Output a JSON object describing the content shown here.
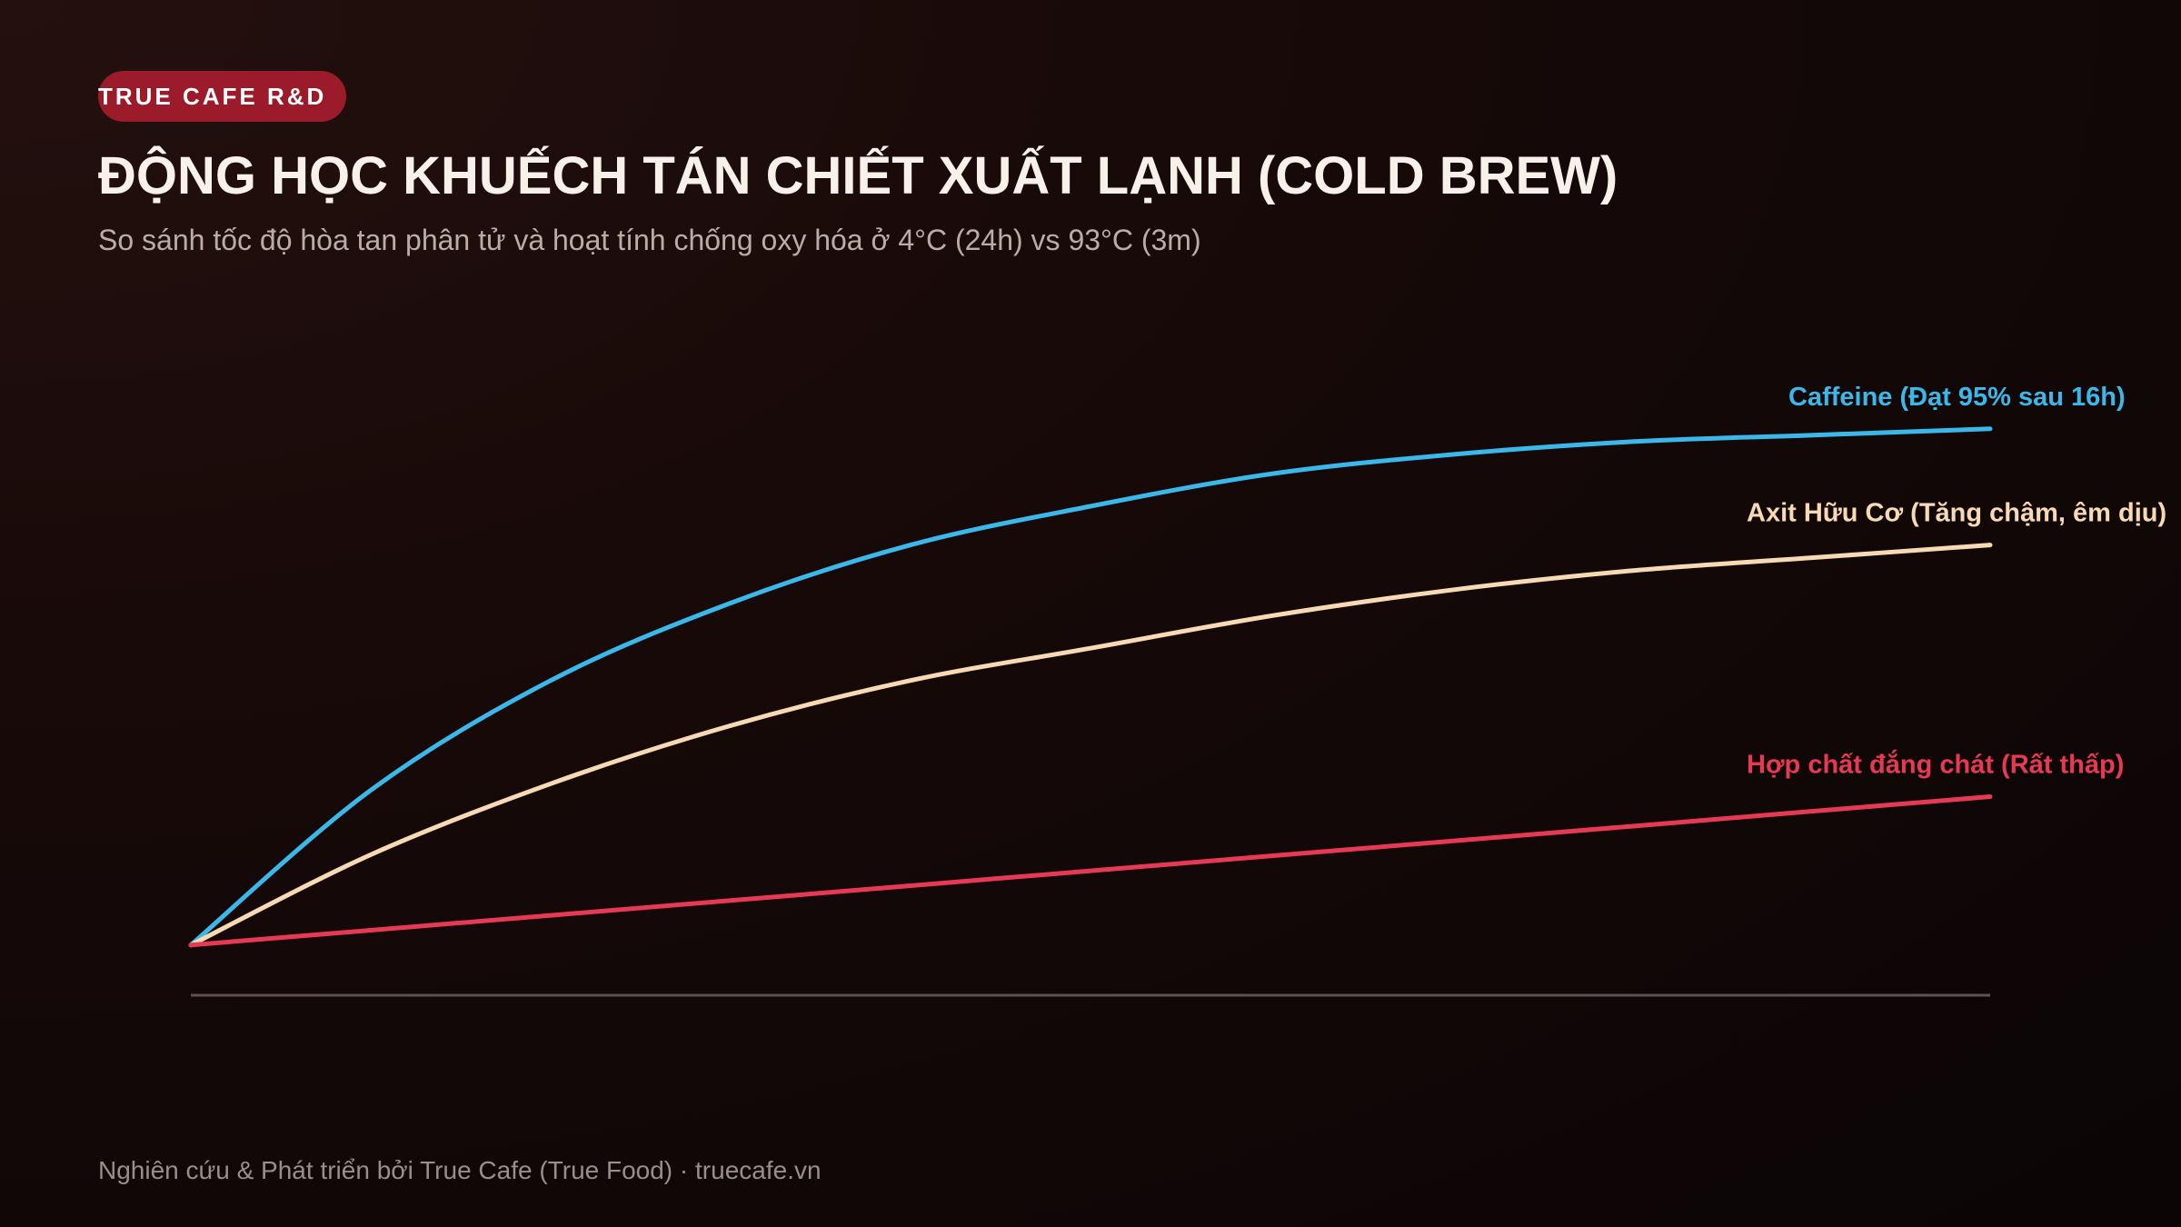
{
  "header": {
    "badge": "TRUE CAFE R&D",
    "title": "ĐỘNG HỌC KHUẾCH TÁN CHIẾT XUẤT LẠNH (COLD BREW)",
    "subtitle": "So sánh tốc độ hòa tan phân tử và hoạt tính chống oxy hóa ở 4°C (24h) vs 93°C (3m)"
  },
  "footer": {
    "text": "Nghiên cứu & Phát triển bởi True Cafe (True Food) · truecafe.vn"
  },
  "colors": {
    "badge": "#9b1b2a",
    "caffeine": "#3bb8ea",
    "acid": "#f7d9b4",
    "bitter": "#e63a54",
    "baseline": "#5d5250"
  },
  "chart_data": {
    "type": "line",
    "title": "",
    "xlabel": "",
    "ylabel": "",
    "x": [
      0,
      0.1,
      0.2,
      0.3,
      0.4,
      0.5,
      0.6,
      0.7,
      0.8,
      0.9,
      1.0
    ],
    "ylim": [
      0,
      1
    ],
    "grid": false,
    "legend": "inline-right",
    "series": [
      {
        "name": "Caffeine (Đạt 95% sau 16h)",
        "color": "#3bb8ea",
        "values": [
          0.12,
          0.36,
          0.53,
          0.65,
          0.74,
          0.8,
          0.85,
          0.88,
          0.9,
          0.91,
          0.92
        ]
      },
      {
        "name": "Axit Hữu Cơ (Tăng chậm, êm dịu)",
        "color": "#f7d9b4",
        "values": [
          0.12,
          0.26,
          0.37,
          0.46,
          0.53,
          0.58,
          0.63,
          0.67,
          0.7,
          0.72,
          0.74
        ]
      },
      {
        "name": "Hợp chất đắng chát (Rất thấp)",
        "color": "#e63a54",
        "values": [
          0.12,
          0.143,
          0.166,
          0.189,
          0.212,
          0.235,
          0.258,
          0.281,
          0.304,
          0.327,
          0.35
        ]
      }
    ]
  }
}
